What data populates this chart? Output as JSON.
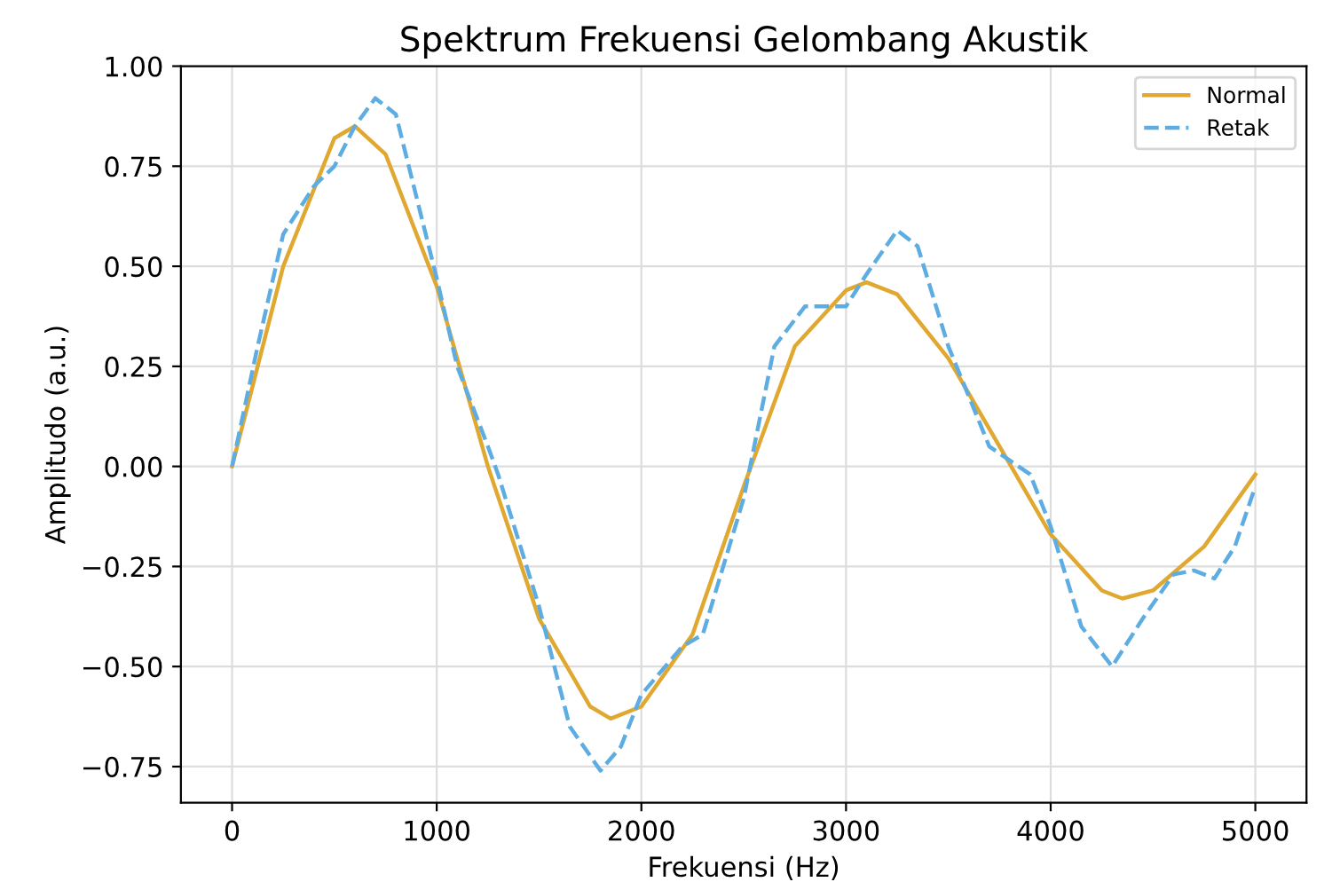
{
  "chart_data": {
    "type": "line",
    "title": "Spektrum Frekuensi Gelombang Akustik",
    "xlabel": "Frekuensi (Hz)",
    "ylabel": "Amplitudo (a.u.)",
    "xlim": [
      -250,
      5250
    ],
    "xticks": [
      0,
      1000,
      2000,
      3000,
      4000,
      5000
    ],
    "ylim": [
      -0.84,
      1.0
    ],
    "yticks": [
      {
        "value": -0.75,
        "label": "−0.75"
      },
      {
        "value": -0.5,
        "label": "−0.50"
      },
      {
        "value": -0.25,
        "label": "−0.25"
      },
      {
        "value": 0,
        "label": "0.00"
      },
      {
        "value": 0.25,
        "label": "0.25"
      },
      {
        "value": 0.5,
        "label": "0.50"
      },
      {
        "value": 0.75,
        "label": "0.75"
      },
      {
        "value": 1.0,
        "label": "1.00"
      }
    ],
    "grid": true,
    "legend": "top right",
    "series": [
      {
        "name": "Normal",
        "color": "#e0a830",
        "line_style": "solid",
        "x": [
          0,
          250,
          500,
          600,
          750,
          1000,
          1250,
          1500,
          1750,
          1850,
          2000,
          2250,
          2500,
          2750,
          3000,
          3100,
          3250,
          3500,
          3750,
          4000,
          4250,
          4350,
          4500,
          4750,
          5000
        ],
        "values": [
          0,
          0.5,
          0.82,
          0.85,
          0.78,
          0.45,
          0.0,
          -0.38,
          -0.6,
          -0.63,
          -0.6,
          -0.42,
          -0.05,
          0.3,
          0.44,
          0.46,
          0.43,
          0.27,
          0.05,
          -0.17,
          -0.31,
          -0.33,
          -0.31,
          -0.2,
          -0.02
        ]
      },
      {
        "name": "Retak",
        "color": "#5dade2",
        "line_style": "dashed",
        "x": [
          0,
          125,
          250,
          400,
          500,
          600,
          700,
          800,
          1000,
          1100,
          1250,
          1300,
          1500,
          1650,
          1800,
          1900,
          2000,
          2200,
          2300,
          2500,
          2650,
          2800,
          3000,
          3100,
          3250,
          3350,
          3500,
          3700,
          3900,
          4000,
          4150,
          4300,
          4450,
          4600,
          4700,
          4800,
          4900,
          5000
        ],
        "values": [
          0,
          0.3,
          0.58,
          0.7,
          0.75,
          0.85,
          0.92,
          0.88,
          0.47,
          0.25,
          0.05,
          -0.02,
          -0.35,
          -0.65,
          -0.76,
          -0.7,
          -0.57,
          -0.45,
          -0.42,
          -0.08,
          0.3,
          0.4,
          0.4,
          0.48,
          0.59,
          0.55,
          0.3,
          0.05,
          -0.02,
          -0.15,
          -0.4,
          -0.5,
          -0.38,
          -0.27,
          -0.26,
          -0.28,
          -0.2,
          -0.05
        ]
      }
    ]
  }
}
